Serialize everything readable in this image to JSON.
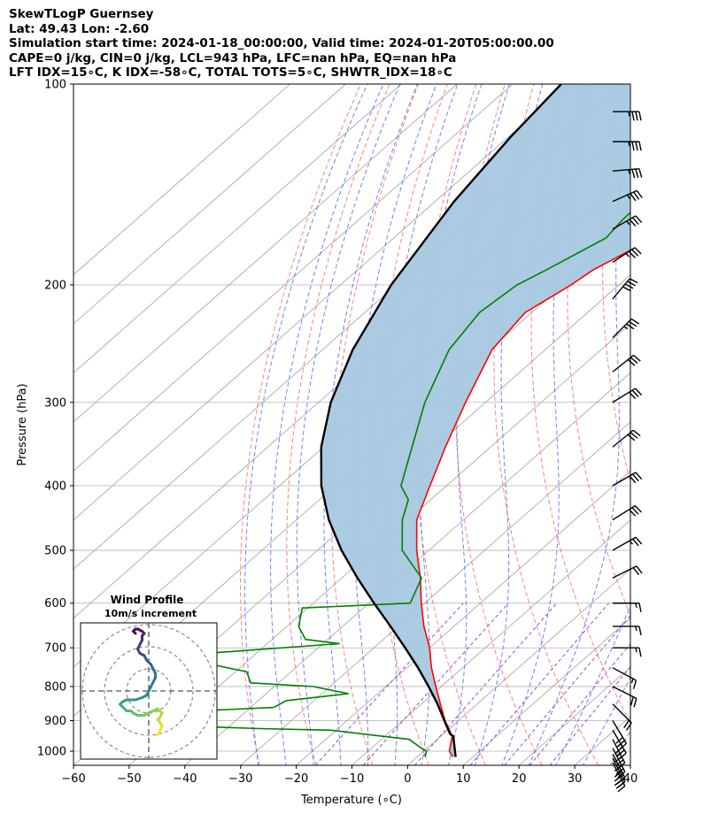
{
  "header": {
    "line1": "SkewTLogP Guernsey",
    "line2": "Lat: 49.43   Lon: -2.60",
    "line3": "Simulation start time: 2024-01-18_00:00:00, Valid time: 2024-01-20T05:00:00.00",
    "line4": "CAPE=0 j/kg, CIN=0 j/kg, LCL=943 hPa, LFC=nan hPa, EQ=nan hPa",
    "line5": "LFT IDX=15∘C, K IDX=-58∘C, TOTAL TOTS=5∘C, SHWTR_IDX=18∘C"
  },
  "colors": {
    "temperature": "#ff0000",
    "dewpoint": "#008000",
    "parcel": "#000000",
    "shading": "#a6c8e0",
    "dry_adiabat": "#ff6b6b",
    "moist_adiabat": "#4a62ff",
    "mixing_ratio": "#9b4dca",
    "isotherm": "#a0a0a0"
  },
  "chart_data": {
    "type": "skewt",
    "xlabel": "Temperature (∘C)",
    "ylabel": "Pressure (hPa)",
    "xlim": [
      -60,
      40
    ],
    "ylim": [
      1050,
      100
    ],
    "x_ticks": [
      "−60",
      "−50",
      "−40",
      "−30",
      "−20",
      "−10",
      "0",
      "10",
      "20",
      "30",
      "40"
    ],
    "y_ticks": [
      100,
      200,
      300,
      400,
      500,
      600,
      700,
      800,
      900,
      1000
    ],
    "skew_deg_per_decade": 136,
    "temperature": {
      "name": "Temperature",
      "pressure": [
        1020,
        1000,
        950,
        900,
        850,
        800,
        750,
        700,
        650,
        600,
        550,
        500,
        450,
        400,
        350,
        300,
        250,
        220,
        200,
        190,
        170,
        150,
        140,
        130,
        120,
        110,
        100
      ],
      "values": [
        6.4,
        4.6,
        2.1,
        -2.4,
        -6.6,
        -11.0,
        -15.6,
        -20.0,
        -25.4,
        -30.6,
        -35.9,
        -42.2,
        -48.4,
        -53.0,
        -58.1,
        -63.6,
        -69.6,
        -71.2,
        -68.6,
        -67.7,
        -63.3,
        -58.4,
        -54.6,
        -54.8,
        -54.9,
        -54.3,
        -52.4
      ]
    },
    "dewpoint": {
      "name": "Dewpoint",
      "pressure": [
        1020,
        1000,
        990,
        960,
        930,
        925,
        910,
        880,
        860,
        840,
        820,
        800,
        790,
        760,
        720,
        690,
        680,
        650,
        610,
        600,
        550,
        500,
        450,
        420,
        400,
        350,
        300,
        250,
        220,
        200,
        190,
        170,
        160,
        150,
        130,
        110,
        100
      ],
      "values": [
        1.4,
        0.5,
        -1.0,
        -5.0,
        -21.0,
        -34.0,
        -61.0,
        -61.0,
        -35.8,
        -35.0,
        -25.2,
        -33.0,
        -45.0,
        -48.0,
        -65.0,
        -37.0,
        -44.0,
        -47.9,
        -51.0,
        -32.6,
        -35.7,
        -44.8,
        -51.0,
        -54.0,
        -58.2,
        -64.1,
        -70.9,
        -77.3,
        -79.4,
        -78.3,
        -76.1,
        -71.9,
        -72.6,
        -72.9,
        -80.1,
        -75.3,
        -72.2
      ]
    },
    "parcel": {
      "name": "Parcel",
      "pressure": [
        1020,
        950,
        943,
        900,
        850,
        800,
        750,
        700,
        650,
        600,
        550,
        500,
        450,
        400,
        350,
        300,
        250,
        200,
        150,
        120,
        100
      ],
      "values": [
        6.9,
        2.3,
        1.3,
        -2.5,
        -7.1,
        -12.3,
        -18.0,
        -24.4,
        -31.4,
        -39.1,
        -47.2,
        -55.7,
        -64.2,
        -72.5,
        -80.4,
        -87.8,
        -94.6,
        -100.9,
        -106.6,
        -109.6,
        -111.3
      ]
    },
    "shaded_region": "between parcel and temperature profiles",
    "wind_barbs": [
      {
        "p": 1040,
        "u": -14,
        "v": 27
      },
      {
        "p": 1025,
        "u": -14,
        "v": 27
      },
      {
        "p": 1010,
        "u": -14,
        "v": 27
      },
      {
        "p": 990,
        "u": -14,
        "v": 27
      },
      {
        "p": 960,
        "u": -16,
        "v": 31
      },
      {
        "p": 930,
        "u": -17,
        "v": 29
      },
      {
        "p": 900,
        "u": -15,
        "v": 25
      },
      {
        "p": 850,
        "u": -14,
        "v": 14
      },
      {
        "p": 800,
        "u": -16,
        "v": 8
      },
      {
        "p": 750,
        "u": -15,
        "v": 8
      },
      {
        "p": 700,
        "u": -14,
        "v": 0
      },
      {
        "p": 650,
        "u": -14,
        "v": 0
      },
      {
        "p": 600,
        "u": -17,
        "v": 0
      },
      {
        "p": 550,
        "u": -20,
        "v": -10
      },
      {
        "p": 500,
        "u": -23,
        "v": -13
      },
      {
        "p": 450,
        "u": -24,
        "v": -15
      },
      {
        "p": 400,
        "u": -26,
        "v": -15
      },
      {
        "p": 350,
        "u": -22,
        "v": -18
      },
      {
        "p": 300,
        "u": -26,
        "v": -16
      },
      {
        "p": 270,
        "u": -25,
        "v": -20
      },
      {
        "p": 240,
        "u": -25,
        "v": -25
      },
      {
        "p": 210,
        "u": -25,
        "v": -30
      },
      {
        "p": 185,
        "u": -30,
        "v": -20
      },
      {
        "p": 165,
        "u": -31,
        "v": -18
      },
      {
        "p": 150,
        "u": -33,
        "v": -15
      },
      {
        "p": 135,
        "u": -35,
        "v": -3
      },
      {
        "p": 122,
        "u": -33,
        "v": 0
      },
      {
        "p": 110,
        "u": -35,
        "v": 0
      }
    ],
    "inset": {
      "title": "Wind Profile",
      "subtitle": "10m/s increment",
      "ring_count": 3,
      "u_values": [
        4,
        5,
        6,
        5,
        4,
        5,
        6,
        4,
        2,
        0,
        -2,
        -5,
        -7,
        -8,
        -10,
        -11,
        -12,
        -13,
        -12,
        -10,
        -6,
        -3,
        -1,
        0,
        1,
        2,
        3,
        3,
        2,
        1,
        0,
        -1,
        -2,
        -4,
        -5,
        -4,
        -3,
        -3,
        -2,
        -3,
        -5,
        -6,
        -7,
        -6
      ],
      "v_values": [
        -20,
        -18,
        -16,
        -14,
        -13,
        -12,
        -10,
        -8,
        -9,
        -10,
        -11,
        -11,
        -10,
        -9,
        -9,
        -8,
        -7,
        -6,
        -5,
        -4,
        -4,
        -3,
        -2,
        0,
        2,
        4,
        6,
        8,
        10,
        12,
        13,
        14,
        16,
        17,
        19,
        21,
        23,
        25,
        26,
        27,
        28,
        28,
        27,
        26
      ]
    }
  }
}
